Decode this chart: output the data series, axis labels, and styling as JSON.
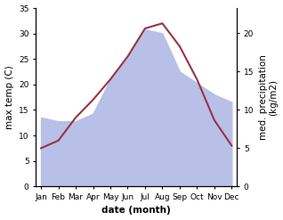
{
  "months": [
    "Jan",
    "Feb",
    "Mar",
    "Apr",
    "May",
    "Jun",
    "Jul",
    "Aug",
    "Sep",
    "Oct",
    "Nov",
    "Dec"
  ],
  "temperature": [
    7.5,
    9.0,
    13.5,
    17.0,
    21.0,
    25.5,
    31.0,
    32.0,
    27.5,
    21.0,
    13.0,
    8.0
  ],
  "precipitation": [
    9.0,
    8.5,
    8.5,
    9.5,
    14.0,
    17.0,
    20.5,
    20.0,
    15.0,
    13.5,
    12.0,
    11.0
  ],
  "temp_color": "#993344",
  "precip_fill_color": "#b8c0e8",
  "temp_ylim": [
    0,
    35
  ],
  "precip_ylim": [
    0,
    23.3
  ],
  "temp_yticks": [
    0,
    5,
    10,
    15,
    20,
    25,
    30,
    35
  ],
  "precip_yticks": [
    0,
    5,
    10,
    15,
    20
  ],
  "xlabel": "date (month)",
  "ylabel_left": "max temp (C)",
  "ylabel_right": "med. precipitation\n(kg/m2)",
  "label_fontsize": 7.5,
  "tick_fontsize": 6.5
}
